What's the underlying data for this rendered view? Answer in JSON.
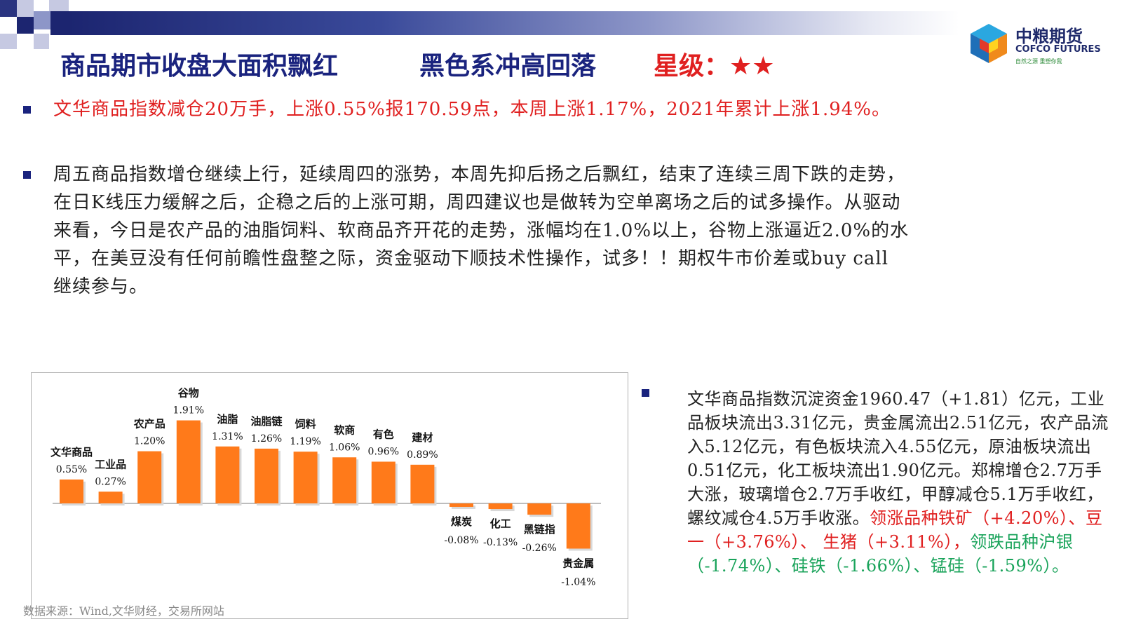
{
  "header": {
    "title_1": "商品期市收盘大面积飘红",
    "title_2": "黑色系冲高回落",
    "rating_label": "星级：",
    "rating_stars": "★★",
    "colors": {
      "navy": "#1a237e",
      "red": "#e02020",
      "orange": "#ff7a1a"
    }
  },
  "logo": {
    "cn": "中粮期货",
    "en": "COFCO FUTURES",
    "tagline": "自然之源 重塑你我"
  },
  "bullets": {
    "b1": "文华商品指数减仓20万手，上涨0.55%报170.59点，本周上涨1.17%，2021年累计上涨1.94%。",
    "b2_lines": [
      "周五商品指数增仓继续上行，延续周四的涨势，本周先抑后扬之后飘红，结束了连续三周下跌的走势，",
      "在日K线压力缓解之后，企稳之后的上涨可期，周四建议也是做转为空单离场之后的试多操作。从驱动",
      "来看，今日是农产品的油脂饲料、软商品齐开花的走势，涨幅均在1.0%以上，谷物上涨逼近2.0%的水",
      "平，在美豆没有任何前瞻性盘整之际，资金驱动下顺技术性操作，试多！！期权牛市价差或buy call",
      "继续参与。"
    ],
    "b3_black": "文华商品指数沉淀资金1960.47（+1.81）亿元，工业品板块流出3.31亿元，贵金属流出2.51亿元，农产品流入5.12亿元，有色板块流入4.55亿元，原油板块流出0.51亿元，化工板块流出1.90亿元。郑棉增仓2.7万手大涨，玻璃增仓2.7万手收红，甲醇减仓5.1万手收红，螺纹减仓4.5万手收涨。",
    "b3_red": "领涨品种铁矿（+4.20%）、豆一（+3.76%）、 生猪（+3.11%），",
    "b3_green": "领跌品种沪银（-1.74%）、硅铁（-1.66%）、锰硅（-1.59%）。"
  },
  "chart_data": {
    "type": "bar",
    "categories": [
      "文华商品",
      "工业品",
      "农产品",
      "谷物",
      "油脂",
      "油脂链",
      "饲料",
      "软商",
      "有色",
      "建材",
      "煤炭",
      "化工",
      "黑链指",
      "贵金属"
    ],
    "values": [
      0.55,
      0.27,
      1.2,
      1.91,
      1.31,
      1.26,
      1.19,
      1.06,
      0.96,
      0.89,
      -0.08,
      -0.13,
      -0.26,
      -1.04
    ],
    "value_labels": [
      "0.55%",
      "0.27%",
      "1.20%",
      "1.91%",
      "1.31%",
      "1.26%",
      "1.19%",
      "1.06%",
      "0.96%",
      "0.89%",
      "-0.08%",
      "-0.13%",
      "-0.26%",
      "-1.04%"
    ],
    "bar_color": "#ff7a1a",
    "grid": false,
    "legend": "none"
  },
  "source": "数据来源：Wind,文华财经，交易所网站"
}
